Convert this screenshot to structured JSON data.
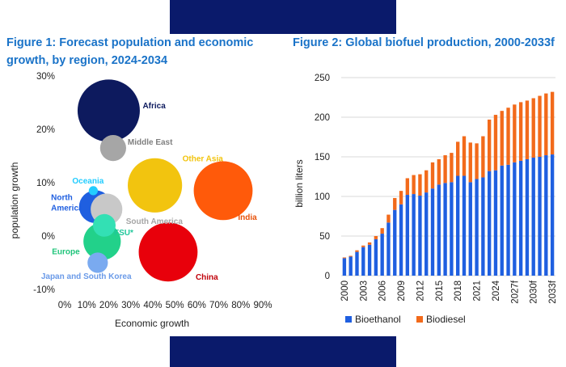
{
  "figure1": {
    "title": "Figure 1: Forecast population and economic growth, by region, 2024-2034",
    "chart_data": {
      "type": "scatter",
      "subtype": "bubble",
      "xlabel": "Economic growth",
      "ylabel": "population growth",
      "xlim": [
        0,
        90
      ],
      "ylim": [
        -10,
        30
      ],
      "x_ticks": [
        "0%",
        "10%",
        "20%",
        "30%",
        "40%",
        "50%",
        "60%",
        "70%",
        "80%",
        "90%"
      ],
      "y_ticks": [
        "-10%",
        "0%",
        "10%",
        "20%",
        "30%"
      ],
      "points": [
        {
          "label": "Africa",
          "x": 20,
          "y": 23.5,
          "size": 5.5,
          "color": "#0d1a5e",
          "label_color": "#0d1a5e"
        },
        {
          "label": "Middle East",
          "x": 22,
          "y": 16.5,
          "size": 2.3,
          "color": "#a6a6a6",
          "label_color": "#7f7f7f"
        },
        {
          "label": "Other Asia",
          "x": 41,
          "y": 9.5,
          "size": 4.8,
          "color": "#f2c40f",
          "label_color": "#f2c40f"
        },
        {
          "label": "India",
          "x": 72,
          "y": 8.5,
          "size": 5.2,
          "color": "#ff5a0a",
          "label_color": "#e8520a"
        },
        {
          "label": "Oceania",
          "x": 13,
          "y": 8.5,
          "size": 0.8,
          "color": "#22ccff",
          "label_color": "#22ccff"
        },
        {
          "label": "North America",
          "x": 14,
          "y": 5.5,
          "size": 2.9,
          "color": "#1f5fe0",
          "label_color": "#1f5fe0"
        },
        {
          "label": "South America",
          "x": 19,
          "y": 5.0,
          "size": 2.8,
          "color": "#c8c8c8",
          "label_color": "#a6a6a6"
        },
        {
          "label": "FSU*",
          "x": 18,
          "y": 2.0,
          "size": 2.0,
          "color": "#33e0b4",
          "label_color": "#1fc79a"
        },
        {
          "label": "Europe",
          "x": 17,
          "y": -1.0,
          "size": 3.3,
          "color": "#22d18a",
          "label_color": "#1fc47a"
        },
        {
          "label": "China",
          "x": 47,
          "y": -3.0,
          "size": 5.2,
          "color": "#e8000b",
          "label_color": "#c0000a"
        },
        {
          "label": "Japan and South Korea",
          "x": 15,
          "y": -5.0,
          "size": 1.8,
          "color": "#7aaaf0",
          "label_color": "#6a9ae8"
        }
      ]
    }
  },
  "figure2": {
    "title": "Figure 2: Global biofuel production, 2000-2033f",
    "chart_data": {
      "type": "bar",
      "stacked": true,
      "ylabel": "billion liters",
      "xlabel": "",
      "ylim": [
        0,
        250
      ],
      "y_ticks": [
        "0",
        "50",
        "100",
        "150",
        "200",
        "250"
      ],
      "categories": [
        "2000",
        "2001",
        "2002",
        "2003",
        "2004",
        "2005",
        "2006",
        "2007",
        "2008",
        "2009",
        "2010",
        "2011",
        "2012",
        "2013",
        "2014",
        "2015",
        "2016",
        "2017",
        "2018",
        "2019",
        "2020",
        "2021",
        "2022",
        "2023",
        "2024",
        "2025",
        "2026",
        "2027f",
        "2028f",
        "2029f",
        "2030f",
        "2031f",
        "2032f",
        "2033f"
      ],
      "x_tick_labels": [
        "2000",
        "2003",
        "2006",
        "2009",
        "2012",
        "2015",
        "2018",
        "2021",
        "2024",
        "2027f",
        "2030f",
        "2033f"
      ],
      "series": [
        {
          "name": "Bioethanol",
          "color": "#1f5fe0",
          "values": [
            22,
            24,
            30,
            36,
            39,
            46,
            53,
            67,
            83,
            90,
            102,
            103,
            101,
            105,
            110,
            115,
            117,
            118,
            126,
            126,
            118,
            122,
            124,
            132,
            133,
            139,
            140,
            143,
            145,
            147,
            149,
            150,
            152,
            153
          ]
        },
        {
          "name": "Biodiesel",
          "color": "#f26a1b",
          "values": [
            1,
            1,
            2,
            2,
            3,
            4,
            7,
            10,
            15,
            17,
            21,
            24,
            27,
            28,
            33,
            32,
            35,
            37,
            43,
            50,
            50,
            45,
            52,
            65,
            70,
            69,
            72,
            73,
            74,
            74,
            75,
            77,
            78,
            79
          ]
        }
      ],
      "legend": {
        "position": "bottom",
        "entries": [
          "Bioethanol",
          "Biodiesel"
        ]
      }
    }
  }
}
